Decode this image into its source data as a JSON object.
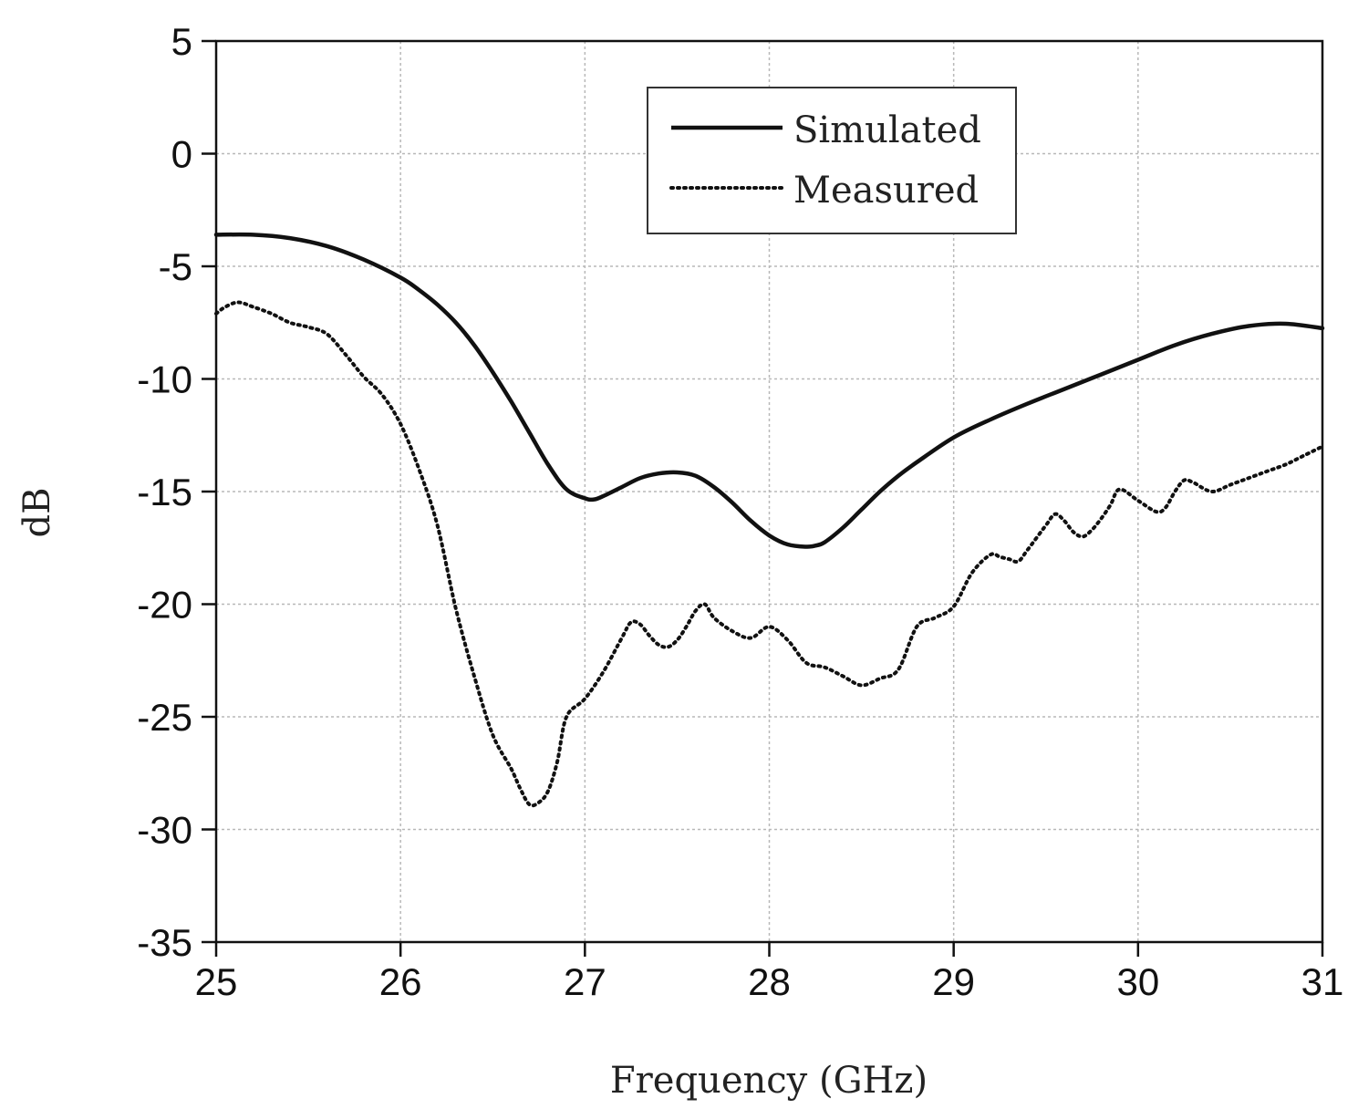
{
  "chart_data": {
    "type": "line",
    "title": "",
    "xlabel": "Frequency (GHz)",
    "ylabel": "dB",
    "xlim": [
      25,
      31
    ],
    "ylim": [
      -35,
      5
    ],
    "xticks": [
      25,
      26,
      27,
      28,
      29,
      30,
      31
    ],
    "yticks": [
      5,
      0,
      -5,
      -10,
      -15,
      -20,
      -25,
      -30,
      -35
    ],
    "xtick_labels": [
      "25",
      "26",
      "27",
      "28",
      "29",
      "30",
      "31"
    ],
    "ytick_labels": [
      "5",
      "0",
      "-5",
      "-10",
      "-15",
      "-20",
      "-25",
      "-30",
      "-35"
    ],
    "grid": true,
    "legend_position": "top-center",
    "series": [
      {
        "name": "Simulated",
        "style": "solid",
        "color": "#111111",
        "x": [
          25.0,
          25.2,
          25.4,
          25.6,
          25.8,
          26.0,
          26.1,
          26.2,
          26.3,
          26.4,
          26.5,
          26.6,
          26.7,
          26.8,
          26.9,
          27.0,
          27.05,
          27.1,
          27.2,
          27.3,
          27.4,
          27.5,
          27.6,
          27.7,
          27.8,
          27.9,
          28.0,
          28.1,
          28.2,
          28.25,
          28.3,
          28.4,
          28.5,
          28.6,
          28.7,
          28.8,
          29.0,
          29.2,
          29.4,
          29.6,
          29.8,
          30.0,
          30.2,
          30.4,
          30.6,
          30.8,
          31.0
        ],
        "y": [
          -3.6,
          -3.6,
          -3.75,
          -4.1,
          -4.7,
          -5.5,
          -6.05,
          -6.7,
          -7.5,
          -8.5,
          -9.7,
          -11.0,
          -12.4,
          -13.8,
          -14.9,
          -15.3,
          -15.35,
          -15.2,
          -14.8,
          -14.4,
          -14.2,
          -14.15,
          -14.3,
          -14.8,
          -15.5,
          -16.3,
          -16.95,
          -17.35,
          -17.45,
          -17.4,
          -17.25,
          -16.6,
          -15.8,
          -15.0,
          -14.3,
          -13.7,
          -12.6,
          -11.8,
          -11.1,
          -10.45,
          -9.8,
          -9.15,
          -8.5,
          -8.0,
          -7.65,
          -7.55,
          -7.75
        ]
      },
      {
        "name": "Measured",
        "style": "dotted",
        "color": "#111111",
        "x": [
          25.0,
          25.05,
          25.12,
          25.2,
          25.3,
          25.4,
          25.5,
          25.6,
          25.7,
          25.8,
          25.9,
          26.0,
          26.1,
          26.2,
          26.3,
          26.4,
          26.5,
          26.6,
          26.65,
          26.7,
          26.75,
          26.8,
          26.85,
          26.9,
          27.0,
          27.1,
          27.2,
          27.25,
          27.3,
          27.35,
          27.4,
          27.45,
          27.5,
          27.55,
          27.6,
          27.65,
          27.7,
          27.8,
          27.9,
          28.0,
          28.1,
          28.2,
          28.3,
          28.4,
          28.5,
          28.6,
          28.7,
          28.8,
          28.9,
          29.0,
          29.1,
          29.2,
          29.25,
          29.3,
          29.35,
          29.4,
          29.5,
          29.55,
          29.6,
          29.65,
          29.7,
          29.75,
          29.8,
          29.85,
          29.9,
          30.0,
          30.1,
          30.15,
          30.2,
          30.25,
          30.3,
          30.4,
          30.5,
          30.6,
          30.7,
          30.8,
          30.9,
          31.0
        ],
        "y": [
          -7.1,
          -6.8,
          -6.6,
          -6.8,
          -7.1,
          -7.5,
          -7.7,
          -8.0,
          -8.9,
          -9.9,
          -10.7,
          -12.0,
          -14.0,
          -16.5,
          -20.2,
          -23.2,
          -25.8,
          -27.3,
          -28.2,
          -28.9,
          -28.8,
          -28.3,
          -27.0,
          -25.0,
          -24.2,
          -23.0,
          -21.5,
          -20.8,
          -20.9,
          -21.4,
          -21.8,
          -21.9,
          -21.6,
          -21.0,
          -20.3,
          -20.0,
          -20.6,
          -21.2,
          -21.5,
          -21.0,
          -21.6,
          -22.6,
          -22.8,
          -23.2,
          -23.6,
          -23.3,
          -22.9,
          -21.0,
          -20.6,
          -20.1,
          -18.6,
          -17.8,
          -17.9,
          -18.0,
          -18.1,
          -17.6,
          -16.5,
          -16.0,
          -16.3,
          -16.8,
          -17.0,
          -16.7,
          -16.2,
          -15.6,
          -14.9,
          -15.4,
          -15.9,
          -15.7,
          -15.0,
          -14.5,
          -14.6,
          -15.0,
          -14.7,
          -14.4,
          -14.1,
          -13.8,
          -13.4,
          -13.0
        ]
      }
    ]
  }
}
